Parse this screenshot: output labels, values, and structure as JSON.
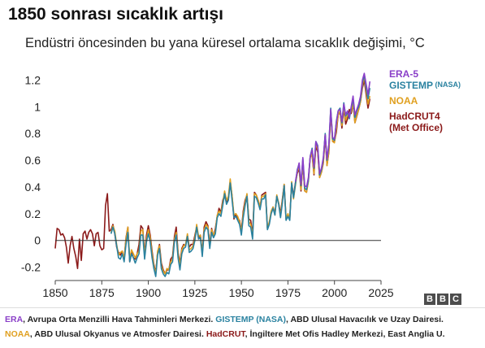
{
  "title": "1850 sonrası sıcaklık artışı",
  "subtitle": "Endüstri öncesinden bu yana küresel ortalama sıcaklık değişimi, °C",
  "logo": [
    "B",
    "B",
    "C"
  ],
  "footer": {
    "line1": [
      {
        "text": "ERA",
        "color": "#8a3fc8"
      },
      {
        "text": ", Avrupa Orta Menzilli Hava Tahminleri Merkezi.  ",
        "color": "#222222"
      },
      {
        "text": "GISTEMP (NASA)",
        "color": "#2a82a0"
      },
      {
        "text": ", ABD Ulusal Havacılık ve Uzay Dairesi.",
        "color": "#222222"
      }
    ],
    "line2": [
      {
        "text": "NOAA",
        "color": "#e0a020"
      },
      {
        "text": ", ABD Ulusal Okyanus ve Atmosfer Dairesi. ",
        "color": "#222222"
      },
      {
        "text": "HadCRUT",
        "color": "#8b1a1a"
      },
      {
        "text": ", İngiltere Met Ofis Hadley Merkezi, East Anglia U.",
        "color": "#222222"
      }
    ]
  },
  "chart_data": {
    "type": "line",
    "xlim": [
      1850,
      2025
    ],
    "ylim": [
      -0.3,
      1.3
    ],
    "xticks": [
      1850,
      1875,
      1900,
      1925,
      1950,
      1975,
      2000,
      2025
    ],
    "yticks": [
      -0.2,
      0,
      0.2,
      0.4,
      0.6,
      0.8,
      1,
      1.2
    ],
    "ytick_labels": [
      "-0.2",
      "0",
      "0.2",
      "0.4",
      "0.6",
      "0.8",
      "1",
      "1.2"
    ],
    "zero_line": true,
    "legend_placement": "right",
    "series": [
      {
        "name": "HadCRUT4",
        "name_line2": "(Met Office)",
        "color": "#8b1a1a",
        "x": [
          1850,
          1851,
          1852,
          1853,
          1854,
          1855,
          1856,
          1857,
          1858,
          1859,
          1860,
          1861,
          1862,
          1863,
          1864,
          1865,
          1866,
          1867,
          1868,
          1869,
          1870,
          1871,
          1872,
          1873,
          1874,
          1875,
          1876,
          1877,
          1878,
          1879,
          1880,
          1881,
          1882,
          1883,
          1884,
          1885,
          1886,
          1887,
          1888,
          1889,
          1890,
          1891,
          1892,
          1893,
          1894,
          1895,
          1896,
          1897,
          1898,
          1899,
          1900,
          1901,
          1902,
          1903,
          1904,
          1905,
          1906,
          1907,
          1908,
          1909,
          1910,
          1911,
          1912,
          1913,
          1914,
          1915,
          1916,
          1917,
          1918,
          1919,
          1920,
          1921,
          1922,
          1923,
          1924,
          1925,
          1926,
          1927,
          1928,
          1929,
          1930,
          1931,
          1932,
          1933,
          1934,
          1935,
          1936,
          1937,
          1938,
          1939,
          1940,
          1941,
          1942,
          1943,
          1944,
          1945,
          1946,
          1947,
          1948,
          1949,
          1950,
          1951,
          1952,
          1953,
          1954,
          1955,
          1956,
          1957,
          1958,
          1959,
          1960,
          1961,
          1962,
          1963,
          1964,
          1965,
          1966,
          1967,
          1968,
          1969,
          1970,
          1971,
          1972,
          1973,
          1974,
          1975,
          1976,
          1977,
          1978,
          1979,
          1980,
          1981,
          1982,
          1983,
          1984,
          1985,
          1986,
          1987,
          1988,
          1989,
          1990,
          1991,
          1992,
          1993,
          1994,
          1995,
          1996,
          1997,
          1998,
          1999,
          2000,
          2001,
          2002,
          2003,
          2004,
          2005,
          2006,
          2007,
          2008,
          2009,
          2010,
          2011,
          2012,
          2013,
          2014,
          2015,
          2016,
          2017,
          2018,
          2019
        ],
        "y": [
          -0.06,
          0.09,
          0.08,
          0.04,
          0.05,
          0.02,
          -0.05,
          -0.17,
          -0.04,
          0.03,
          -0.06,
          -0.12,
          -0.21,
          0.01,
          -0.15,
          0.05,
          0.07,
          0.01,
          0.06,
          0.08,
          0.05,
          -0.04,
          0.05,
          0.06,
          -0.04,
          -0.07,
          -0.06,
          0.26,
          0.35,
          0.07,
          0.08,
          0.12,
          0.05,
          -0.05,
          -0.09,
          -0.11,
          -0.08,
          -0.14,
          0.02,
          0.1,
          -0.16,
          -0.09,
          -0.13,
          -0.14,
          -0.1,
          -0.03,
          0.11,
          0.09,
          -0.1,
          0.04,
          0.11,
          0.04,
          -0.08,
          -0.18,
          -0.24,
          -0.09,
          -0.03,
          -0.17,
          -0.22,
          -0.25,
          -0.22,
          -0.22,
          -0.14,
          -0.12,
          0.03,
          0.1,
          -0.09,
          -0.17,
          -0.06,
          -0.03,
          -0.04,
          0.04,
          -0.05,
          -0.03,
          -0.03,
          0.04,
          0.1,
          0.02,
          0.04,
          -0.09,
          0.1,
          0.14,
          0.11,
          -0.03,
          0.09,
          0.03,
          0.09,
          0.18,
          0.24,
          0.21,
          0.3,
          0.34,
          0.28,
          0.31,
          0.44,
          0.33,
          0.16,
          0.2,
          0.16,
          0.15,
          0.07,
          0.22,
          0.3,
          0.34,
          0.16,
          0.15,
          0.04,
          0.36,
          0.34,
          0.3,
          0.25,
          0.34,
          0.35,
          0.36,
          0.09,
          0.13,
          0.21,
          0.25,
          0.2,
          0.33,
          0.28,
          0.2,
          0.31,
          0.42,
          0.16,
          0.19,
          0.17,
          0.43,
          0.33,
          0.43,
          0.5,
          0.54,
          0.37,
          0.58,
          0.37,
          0.36,
          0.45,
          0.63,
          0.64,
          0.49,
          0.71,
          0.66,
          0.47,
          0.51,
          0.58,
          0.78,
          0.56,
          0.66,
          0.96,
          0.74,
          0.74,
          0.81,
          0.94,
          0.96,
          0.84,
          0.99,
          0.87,
          0.91,
          0.98,
          0.95,
          1.02,
          0.88,
          0.93,
          0.98,
          1.04,
          1.14,
          1.2,
          1.09,
          0.99,
          1.06
        ]
      },
      {
        "name": "NOAA",
        "color": "#e0a020",
        "x": [
          1880,
          1881,
          1882,
          1883,
          1884,
          1885,
          1886,
          1887,
          1888,
          1889,
          1890,
          1891,
          1892,
          1893,
          1894,
          1895,
          1896,
          1897,
          1898,
          1899,
          1900,
          1901,
          1902,
          1903,
          1904,
          1905,
          1906,
          1907,
          1908,
          1909,
          1910,
          1911,
          1912,
          1913,
          1914,
          1915,
          1916,
          1917,
          1918,
          1919,
          1920,
          1921,
          1922,
          1923,
          1924,
          1925,
          1926,
          1927,
          1928,
          1929,
          1930,
          1931,
          1932,
          1933,
          1934,
          1935,
          1936,
          1937,
          1938,
          1939,
          1940,
          1941,
          1942,
          1943,
          1944,
          1945,
          1946,
          1947,
          1948,
          1949,
          1950,
          1951,
          1952,
          1953,
          1954,
          1955,
          1956,
          1957,
          1958,
          1959,
          1960,
          1961,
          1962,
          1963,
          1964,
          1965,
          1966,
          1967,
          1968,
          1969,
          1970,
          1971,
          1972,
          1973,
          1974,
          1975,
          1976,
          1977,
          1978,
          1979,
          1980,
          1981,
          1982,
          1983,
          1984,
          1985,
          1986,
          1987,
          1988,
          1989,
          1990,
          1991,
          1992,
          1993,
          1994,
          1995,
          1996,
          1997,
          1998,
          1999,
          2000,
          2001,
          2002,
          2003,
          2004,
          2005,
          2006,
          2007,
          2008,
          2009,
          2010,
          2011,
          2012,
          2013,
          2014,
          2015,
          2016,
          2017,
          2018,
          2019
        ],
        "y": [
          0.06,
          0.11,
          0.07,
          -0.03,
          -0.11,
          -0.09,
          -0.08,
          -0.14,
          0.01,
          0.1,
          -0.14,
          -0.07,
          -0.1,
          -0.13,
          -0.1,
          -0.08,
          0.07,
          0.08,
          -0.11,
          0.01,
          0.08,
          0.02,
          -0.1,
          -0.19,
          -0.25,
          -0.08,
          -0.04,
          -0.19,
          -0.23,
          -0.25,
          -0.21,
          -0.22,
          -0.16,
          -0.14,
          0.01,
          0.06,
          -0.1,
          -0.19,
          -0.07,
          -0.04,
          -0.03,
          0.05,
          -0.07,
          -0.06,
          -0.04,
          0.02,
          0.12,
          0.03,
          0.04,
          -0.1,
          0.08,
          0.12,
          0.1,
          -0.04,
          0.08,
          0.04,
          0.07,
          0.19,
          0.22,
          0.2,
          0.28,
          0.37,
          0.3,
          0.33,
          0.46,
          0.33,
          0.19,
          0.2,
          0.18,
          0.14,
          0.06,
          0.2,
          0.28,
          0.35,
          0.14,
          0.12,
          0.03,
          0.35,
          0.34,
          0.3,
          0.25,
          0.33,
          0.33,
          0.35,
          0.09,
          0.14,
          0.22,
          0.25,
          0.19,
          0.34,
          0.28,
          0.18,
          0.3,
          0.42,
          0.16,
          0.2,
          0.16,
          0.44,
          0.31,
          0.41,
          0.51,
          0.56,
          0.38,
          0.58,
          0.37,
          0.36,
          0.44,
          0.62,
          0.65,
          0.5,
          0.73,
          0.68,
          0.47,
          0.51,
          0.59,
          0.79,
          0.56,
          0.67,
          0.97,
          0.74,
          0.73,
          0.84,
          0.94,
          0.97,
          0.86,
          1.0,
          0.9,
          0.94,
          0.93,
          0.97,
          1.02,
          0.88,
          0.94,
          0.98,
          1.04,
          1.16,
          1.23,
          1.12,
          1.02,
          1.08
        ]
      },
      {
        "name": "GISTEMP",
        "name_suffix": "(NASA)",
        "color": "#2a82a0",
        "x": [
          1880,
          1881,
          1882,
          1883,
          1884,
          1885,
          1886,
          1887,
          1888,
          1889,
          1890,
          1891,
          1892,
          1893,
          1894,
          1895,
          1896,
          1897,
          1898,
          1899,
          1900,
          1901,
          1902,
          1903,
          1904,
          1905,
          1906,
          1907,
          1908,
          1909,
          1910,
          1911,
          1912,
          1913,
          1914,
          1915,
          1916,
          1917,
          1918,
          1919,
          1920,
          1921,
          1922,
          1923,
          1924,
          1925,
          1926,
          1927,
          1928,
          1929,
          1930,
          1931,
          1932,
          1933,
          1934,
          1935,
          1936,
          1937,
          1938,
          1939,
          1940,
          1941,
          1942,
          1943,
          1944,
          1945,
          1946,
          1947,
          1948,
          1949,
          1950,
          1951,
          1952,
          1953,
          1954,
          1955,
          1956,
          1957,
          1958,
          1959,
          1960,
          1961,
          1962,
          1963,
          1964,
          1965,
          1966,
          1967,
          1968,
          1969,
          1970,
          1971,
          1972,
          1973,
          1974,
          1975,
          1976,
          1977,
          1978,
          1979,
          1980,
          1981,
          1982,
          1983,
          1984,
          1985,
          1986,
          1987,
          1988,
          1989,
          1990,
          1991,
          1992,
          1993,
          1994,
          1995,
          1996,
          1997,
          1998,
          1999,
          2000,
          2001,
          2002,
          2003,
          2004,
          2005,
          2006,
          2007,
          2008,
          2009,
          2010,
          2011,
          2012,
          2013,
          2014,
          2015,
          2016,
          2017,
          2018,
          2019
        ],
        "y": [
          0.05,
          0.1,
          0.05,
          -0.04,
          -0.13,
          -0.14,
          -0.1,
          -0.16,
          -0.03,
          0.06,
          -0.16,
          -0.1,
          -0.13,
          -0.17,
          -0.13,
          -0.1,
          0.04,
          0.04,
          -0.14,
          -0.01,
          0.05,
          -0.01,
          -0.13,
          -0.21,
          -0.27,
          -0.11,
          -0.06,
          -0.21,
          -0.25,
          -0.27,
          -0.24,
          -0.25,
          -0.18,
          -0.16,
          -0.01,
          0.04,
          -0.13,
          -0.22,
          -0.1,
          -0.06,
          -0.05,
          0.03,
          -0.09,
          -0.08,
          -0.06,
          0.0,
          0.1,
          0.01,
          0.02,
          -0.12,
          0.06,
          0.1,
          0.08,
          -0.06,
          0.06,
          0.02,
          0.05,
          0.17,
          0.2,
          0.18,
          0.26,
          0.35,
          0.27,
          0.3,
          0.43,
          0.3,
          0.17,
          0.18,
          0.15,
          0.12,
          0.04,
          0.17,
          0.26,
          0.33,
          0.11,
          0.1,
          0.01,
          0.33,
          0.32,
          0.28,
          0.23,
          0.31,
          0.31,
          0.34,
          0.08,
          0.12,
          0.2,
          0.24,
          0.19,
          0.33,
          0.27,
          0.17,
          0.28,
          0.41,
          0.15,
          0.18,
          0.15,
          0.43,
          0.32,
          0.42,
          0.53,
          0.57,
          0.41,
          0.61,
          0.39,
          0.38,
          0.45,
          0.63,
          0.69,
          0.54,
          0.74,
          0.71,
          0.49,
          0.53,
          0.61,
          0.8,
          0.6,
          0.71,
          0.99,
          0.76,
          0.75,
          0.89,
          0.97,
          0.99,
          0.88,
          1.03,
          0.93,
          0.96,
          0.91,
          0.99,
          1.06,
          0.92,
          0.97,
          1.0,
          1.06,
          1.18,
          1.24,
          1.14,
          1.06,
          1.14
        ]
      },
      {
        "name": "ERA-5",
        "color": "#8a3fc8",
        "x": [
          1979,
          1980,
          1981,
          1982,
          1983,
          1984,
          1985,
          1986,
          1987,
          1988,
          1989,
          1990,
          1991,
          1992,
          1993,
          1994,
          1995,
          1996,
          1997,
          1998,
          1999,
          2000,
          2001,
          2002,
          2003,
          2004,
          2005,
          2006,
          2007,
          2008,
          2009,
          2010,
          2011,
          2012,
          2013,
          2014,
          2015,
          2016,
          2017,
          2018,
          2019
        ],
        "y": [
          0.44,
          0.52,
          0.58,
          0.42,
          0.62,
          0.41,
          0.4,
          0.47,
          0.63,
          0.68,
          0.55,
          0.74,
          0.7,
          0.5,
          0.54,
          0.62,
          0.79,
          0.61,
          0.72,
          0.98,
          0.77,
          0.76,
          0.88,
          0.97,
          0.98,
          0.89,
          1.02,
          0.94,
          0.97,
          0.92,
          1.0,
          1.08,
          0.94,
          0.98,
          1.02,
          1.08,
          1.2,
          1.25,
          1.17,
          1.09,
          1.19
        ]
      }
    ]
  }
}
